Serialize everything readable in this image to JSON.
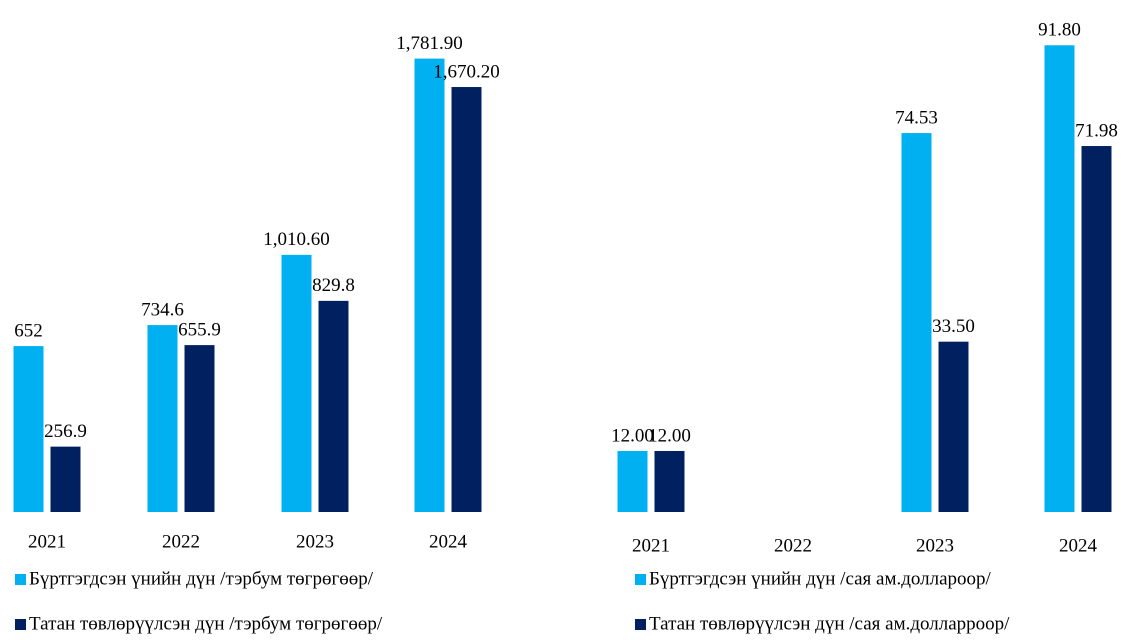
{
  "chart_data": [
    {
      "type": "bar",
      "categories": [
        "2021",
        "2022",
        "2023",
        "2024"
      ],
      "ylim": [
        0,
        1800
      ],
      "series": [
        {
          "name": "Бүртгэгдсэн үнийн дүн /тэрбум төгрөгөөр/",
          "color": "#00b0f0",
          "values": [
            652,
            734.6,
            1010.6,
            1781.9
          ],
          "value_labels": [
            "652",
            "734.6",
            "1,010.60",
            "1,781.90"
          ]
        },
        {
          "name": "Татан төвлөрүүлсэн дүн /тэрбум төгрөгөөр/",
          "color": "#002060",
          "values": [
            256.9,
            655.9,
            829.8,
            1670.2
          ],
          "value_labels": [
            "256.9",
            "655.9",
            "829.8",
            "1,670.20"
          ]
        }
      ]
    },
    {
      "type": "bar",
      "categories": [
        "2021",
        "2022",
        "2023",
        "2024"
      ],
      "ylim": [
        0,
        95
      ],
      "series": [
        {
          "name": "Бүртгэгдсэн үнийн дүн /сая ам.доллароор/",
          "color": "#00b0f0",
          "values": [
            12,
            null,
            74.53,
            91.8
          ],
          "value_labels": [
            "12.00",
            null,
            "74.53",
            "91.80"
          ]
        },
        {
          "name": "Татан төвлөрүүлсэн дүн /сая ам.долларроор/",
          "color": "#002060",
          "values": [
            12,
            null,
            33.5,
            71.98
          ],
          "value_labels": [
            "12.00",
            null,
            "33.50",
            "71.98"
          ]
        }
      ]
    }
  ]
}
